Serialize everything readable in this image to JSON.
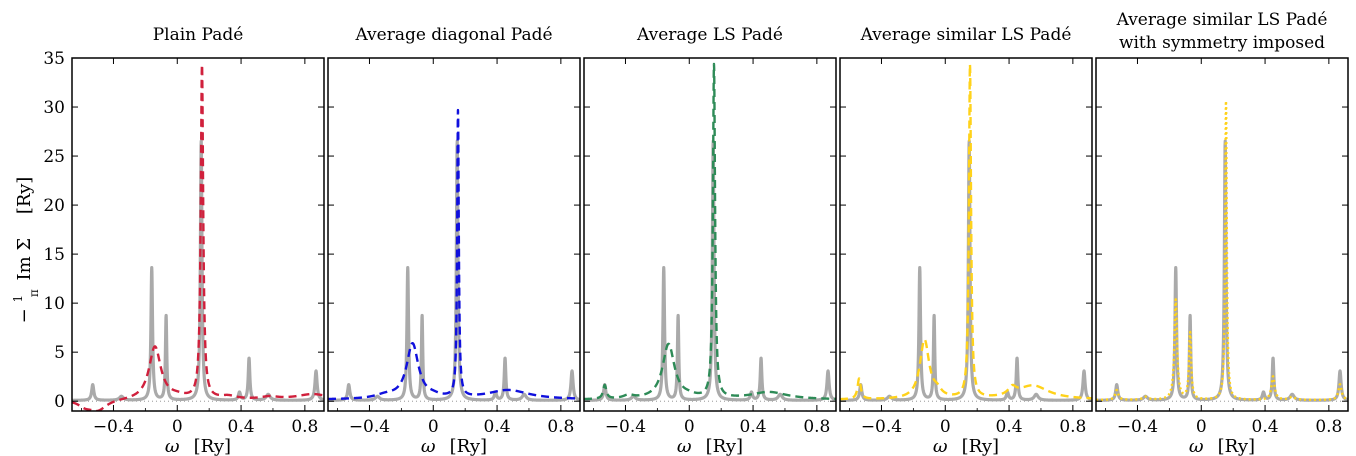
{
  "figure": {
    "ylabel_prefix": "−",
    "ylabel_frac_num": "1",
    "ylabel_frac_den": "π",
    "ylabel_main": "Im Σ",
    "ylabel_unit": "[Ry]",
    "xlabel_symbol": "ω",
    "xlabel_unit": "[Ry]"
  },
  "chart_data": [
    {
      "type": "line",
      "title": "Plain Padé",
      "title_line2": "",
      "xlim": [
        -0.66,
        0.92
      ],
      "ylim": [
        -1,
        35
      ],
      "xticks": [
        -0.4,
        0,
        0.4,
        0.8
      ],
      "xtick_labels": [
        "−0.4",
        "0",
        "0.4",
        "0.8"
      ],
      "yticks": [
        0,
        5,
        10,
        15,
        20,
        25,
        30,
        35
      ],
      "ytick_labels": [
        "0",
        "5",
        "10",
        "15",
        "20",
        "25",
        "30",
        "35"
      ],
      "reference": {
        "color": "#aaaaaa",
        "peaks": [
          [
            -0.53,
            1.6,
            0.008
          ],
          [
            -0.35,
            0.4,
            0.015
          ],
          [
            -0.16,
            13.5,
            0.006
          ],
          [
            -0.07,
            8.6,
            0.005
          ],
          [
            0.15,
            26.5,
            0.006
          ],
          [
            0.39,
            0.8,
            0.008
          ],
          [
            0.45,
            4.3,
            0.006
          ],
          [
            0.57,
            0.6,
            0.015
          ],
          [
            0.87,
            3.0,
            0.008
          ]
        ],
        "baseline": 0.08
      },
      "approx": {
        "color": "#d0203c",
        "dash": "8,5",
        "peaks": [
          [
            -0.14,
            5.4,
            0.045
          ],
          [
            0.155,
            34.0,
            0.009
          ],
          [
            0.0,
            0.25,
            0.06
          ],
          [
            0.32,
            0.3,
            0.06
          ],
          [
            0.85,
            0.55,
            0.12
          ],
          [
            0.58,
            0.25,
            0.06
          ]
        ],
        "dips": [
          [
            -0.5,
            -1.1,
            0.07
          ],
          [
            -0.58,
            -0.5,
            0.05
          ]
        ],
        "baseline": 0.15
      }
    },
    {
      "type": "line",
      "title": "Average diagonal Padé",
      "title_line2": "",
      "xlim": [
        -0.66,
        0.92
      ],
      "ylim": [
        -1,
        35
      ],
      "xticks": [
        -0.4,
        0,
        0.4,
        0.8
      ],
      "xtick_labels": [
        "−0.4",
        "0",
        "0.4",
        "0.8"
      ],
      "reference": {
        "color": "#aaaaaa",
        "peaks": [
          [
            -0.53,
            1.6,
            0.008
          ],
          [
            -0.35,
            0.4,
            0.015
          ],
          [
            -0.16,
            13.5,
            0.006
          ],
          [
            -0.07,
            8.6,
            0.005
          ],
          [
            0.15,
            26.5,
            0.006
          ],
          [
            0.39,
            0.8,
            0.008
          ],
          [
            0.45,
            4.3,
            0.006
          ],
          [
            0.57,
            0.6,
            0.015
          ],
          [
            0.87,
            3.0,
            0.008
          ]
        ],
        "baseline": 0.08
      },
      "approx": {
        "color": "#1010dd",
        "dash": "8,5",
        "peaks": [
          [
            -0.13,
            5.6,
            0.045
          ],
          [
            0.155,
            29.2,
            0.006
          ],
          [
            0.47,
            0.95,
            0.16
          ],
          [
            -0.3,
            0.35,
            0.08
          ],
          [
            0.0,
            0.2,
            0.05
          ]
        ],
        "dips": [],
        "baseline": 0.15
      }
    },
    {
      "type": "line",
      "title": "Average LS Padé",
      "title_line2": "",
      "xlim": [
        -0.66,
        0.92
      ],
      "ylim": [
        -1,
        35
      ],
      "xticks": [
        -0.4,
        0,
        0.4,
        0.8
      ],
      "xtick_labels": [
        "−0.4",
        "0",
        "0.4",
        "0.8"
      ],
      "reference": {
        "color": "#aaaaaa",
        "peaks": [
          [
            -0.53,
            1.6,
            0.008
          ],
          [
            -0.35,
            0.4,
            0.015
          ],
          [
            -0.16,
            13.5,
            0.006
          ],
          [
            -0.07,
            8.6,
            0.005
          ],
          [
            0.15,
            26.5,
            0.006
          ],
          [
            0.39,
            0.8,
            0.008
          ],
          [
            0.45,
            4.3,
            0.006
          ],
          [
            0.57,
            0.6,
            0.015
          ],
          [
            0.87,
            3.0,
            0.008
          ]
        ],
        "baseline": 0.08
      },
      "approx": {
        "color": "#2e8b57",
        "dash": "8,5",
        "peaks": [
          [
            -0.53,
            1.4,
            0.012
          ],
          [
            -0.13,
            5.6,
            0.045
          ],
          [
            0.155,
            34.0,
            0.008
          ],
          [
            0.5,
            0.75,
            0.14
          ],
          [
            -0.38,
            0.35,
            0.04
          ],
          [
            0.0,
            0.2,
            0.05
          ]
        ],
        "dips": [],
        "baseline": 0.15
      }
    },
    {
      "type": "line",
      "title": "Average similar LS Padé",
      "title_line2": "",
      "xlim": [
        -0.66,
        0.92
      ],
      "ylim": [
        -1,
        35
      ],
      "xticks": [
        -0.4,
        0,
        0.4,
        0.8
      ],
      "xtick_labels": [
        "−0.4",
        "0",
        "0.4",
        "0.8"
      ],
      "reference": {
        "color": "#aaaaaa",
        "peaks": [
          [
            -0.53,
            1.6,
            0.008
          ],
          [
            -0.35,
            0.4,
            0.015
          ],
          [
            -0.16,
            13.5,
            0.006
          ],
          [
            -0.07,
            8.6,
            0.005
          ],
          [
            0.15,
            26.5,
            0.006
          ],
          [
            0.39,
            0.8,
            0.008
          ],
          [
            0.45,
            4.3,
            0.006
          ],
          [
            0.57,
            0.6,
            0.015
          ],
          [
            0.87,
            3.0,
            0.008
          ]
        ],
        "baseline": 0.08
      },
      "approx": {
        "color": "#ffd21a",
        "dash": "8,5",
        "peaks": [
          [
            -0.54,
            2.1,
            0.012
          ],
          [
            -0.13,
            6.0,
            0.035
          ],
          [
            0.155,
            34.0,
            0.008
          ],
          [
            0.55,
            1.4,
            0.12
          ],
          [
            0.42,
            0.8,
            0.03
          ],
          [
            -0.05,
            0.6,
            0.03
          ]
        ],
        "dips": [],
        "baseline": 0.15
      }
    },
    {
      "type": "line",
      "title": "Average similar LS Padé",
      "title_line2": "with symmetry imposed",
      "xlim": [
        -0.66,
        0.92
      ],
      "ylim": [
        -1,
        35
      ],
      "xticks": [
        -0.4,
        0,
        0.4,
        0.8
      ],
      "xtick_labels": [
        "−0.4",
        "0",
        "0.4",
        "0.8"
      ],
      "reference": {
        "color": "#aaaaaa",
        "peaks": [
          [
            -0.53,
            1.6,
            0.008
          ],
          [
            -0.35,
            0.4,
            0.015
          ],
          [
            -0.16,
            13.5,
            0.006
          ],
          [
            -0.07,
            8.6,
            0.005
          ],
          [
            0.15,
            26.5,
            0.006
          ],
          [
            0.39,
            0.8,
            0.008
          ],
          [
            0.45,
            4.3,
            0.006
          ],
          [
            0.57,
            0.6,
            0.015
          ],
          [
            0.87,
            3.0,
            0.008
          ]
        ],
        "baseline": 0.08
      },
      "approx": {
        "color": "#ffd21a",
        "dash": "2,3",
        "peaks": [
          [
            -0.53,
            1.0,
            0.012
          ],
          [
            -0.16,
            10.2,
            0.01
          ],
          [
            -0.07,
            6.8,
            0.008
          ],
          [
            0.155,
            30.5,
            0.006
          ],
          [
            0.45,
            2.4,
            0.012
          ],
          [
            0.87,
            1.6,
            0.012
          ],
          [
            -0.35,
            0.3,
            0.02
          ],
          [
            0.57,
            0.3,
            0.02
          ]
        ],
        "dips": [],
        "baseline": 0.12
      }
    }
  ]
}
